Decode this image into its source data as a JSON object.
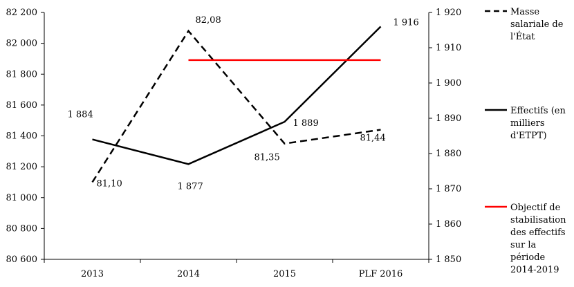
{
  "chart_data": {
    "type": "line",
    "title": "",
    "categories": [
      "2013",
      "2014",
      "2015",
      "PLF 2016"
    ],
    "left_axis": {
      "ylim": [
        80600,
        82200
      ],
      "ticks": [
        80600,
        80800,
        81000,
        81200,
        81400,
        81600,
        81800,
        82000,
        82200
      ],
      "tick_labels": [
        "80 600",
        "80 800",
        "81 000",
        "81 200",
        "81 400",
        "81 600",
        "81 800",
        "82 000",
        "82 200"
      ]
    },
    "right_axis": {
      "ylim": [
        1850,
        1920
      ],
      "ticks": [
        1850,
        1860,
        1870,
        1880,
        1890,
        1900,
        1910,
        1920
      ],
      "tick_labels": [
        "1 850",
        "1 860",
        "1 870",
        "1 880",
        "1 890",
        "1 900",
        "1 910",
        "1 920"
      ]
    },
    "series": [
      {
        "name": "Masse salariale de l'État",
        "axis": "left",
        "style": "dashed",
        "color": "#000000",
        "values": [
          81100,
          82080,
          81350,
          81440
        ],
        "labels": [
          "81,10",
          "82,08",
          "81,35",
          "81,44"
        ]
      },
      {
        "name": "Effectifs (en milliers d'ETPT)",
        "axis": "right",
        "style": "solid",
        "color": "#000000",
        "values": [
          1884,
          1877,
          1889,
          1916
        ],
        "labels": [
          "1 884",
          "1 877",
          "1 889",
          "1 916"
        ]
      },
      {
        "name": "Objectif de stabilisation des effectifs sur la période 2014-2019",
        "axis": "right",
        "style": "solid",
        "color": "#ff0000",
        "value": 1906.5,
        "from": "2014",
        "to": "PLF 2016"
      }
    ],
    "legend": {
      "position": "right",
      "entries": [
        [
          "Masse",
          "salariale de",
          "l'État"
        ],
        [
          "Effectifs (en",
          "milliers",
          "d'ETPT)"
        ],
        [
          "Objectif de",
          "stabilisation",
          "des effectifs",
          "sur la",
          "période",
          "2014-2019"
        ]
      ]
    }
  }
}
